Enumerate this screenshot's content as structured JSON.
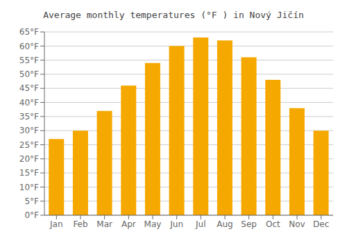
{
  "chart_data": {
    "type": "bar",
    "title": "Average monthly temperatures (°F ) in Nový Jičín",
    "categories": [
      "Jan",
      "Feb",
      "Mar",
      "Apr",
      "May",
      "Jun",
      "Jul",
      "Aug",
      "Sep",
      "Oct",
      "Nov",
      "Dec"
    ],
    "values": [
      27,
      30,
      37,
      46,
      54,
      60,
      63,
      62,
      56,
      48,
      38,
      30
    ],
    "color": "#F5A800",
    "ylim": [
      0,
      65
    ],
    "yticks": [
      {
        "value": 0,
        "label": "0°F"
      },
      {
        "value": 5,
        "label": "5°F"
      },
      {
        "value": 10,
        "label": "10°F"
      },
      {
        "value": 15,
        "label": "15°F"
      },
      {
        "value": 20,
        "label": "20°F"
      },
      {
        "value": 25,
        "label": "25°F"
      },
      {
        "value": 30,
        "label": "30°F"
      },
      {
        "value": 35,
        "label": "35°F"
      },
      {
        "value": 40,
        "label": "40°F"
      },
      {
        "value": 45,
        "label": "45°F"
      },
      {
        "value": 50,
        "label": "50°F"
      },
      {
        "value": 55,
        "label": "55°F"
      },
      {
        "value": 60,
        "label": "60°F"
      },
      {
        "value": 65,
        "label": "65°F"
      }
    ],
    "grid": true
  }
}
